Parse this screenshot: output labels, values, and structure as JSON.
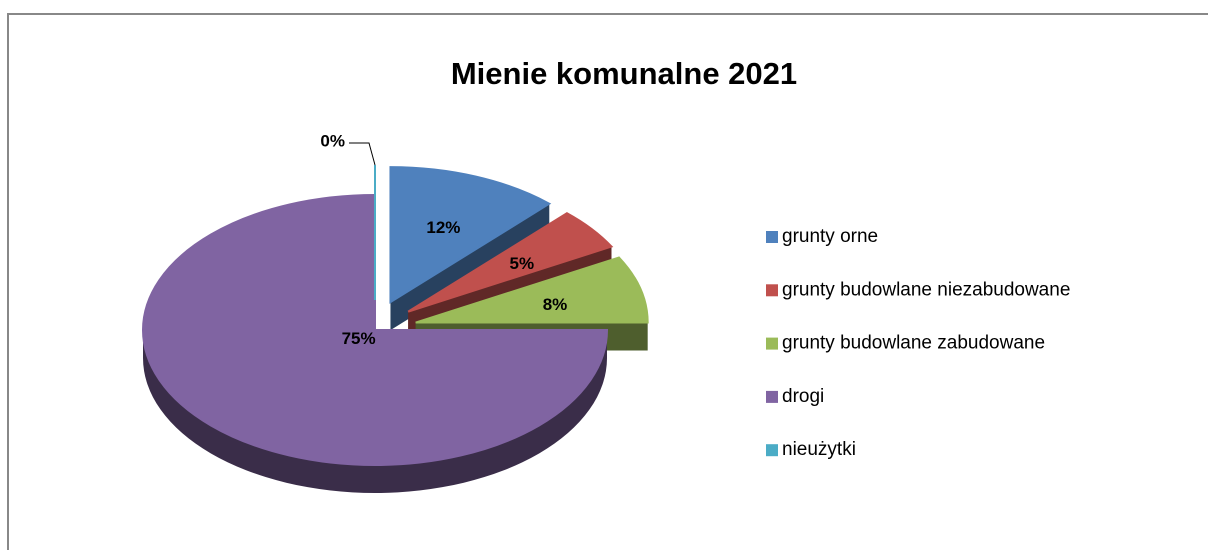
{
  "chart_data": {
    "type": "pie",
    "title": "Mienie komunalne 2021",
    "categories": [
      "grunty orne",
      "grunty budowlane niezabudowane",
      "grunty budowlane zabudowane",
      "drogi",
      "nieużytki"
    ],
    "values": [
      12,
      5,
      8,
      75,
      0
    ],
    "value_labels": [
      "12%",
      "5%",
      "8%",
      "75%",
      "0%"
    ],
    "colors": [
      "#4f81bd",
      "#c0504d",
      "#9bbb59",
      "#8064a2",
      "#4bacc6"
    ],
    "legend": "right"
  }
}
